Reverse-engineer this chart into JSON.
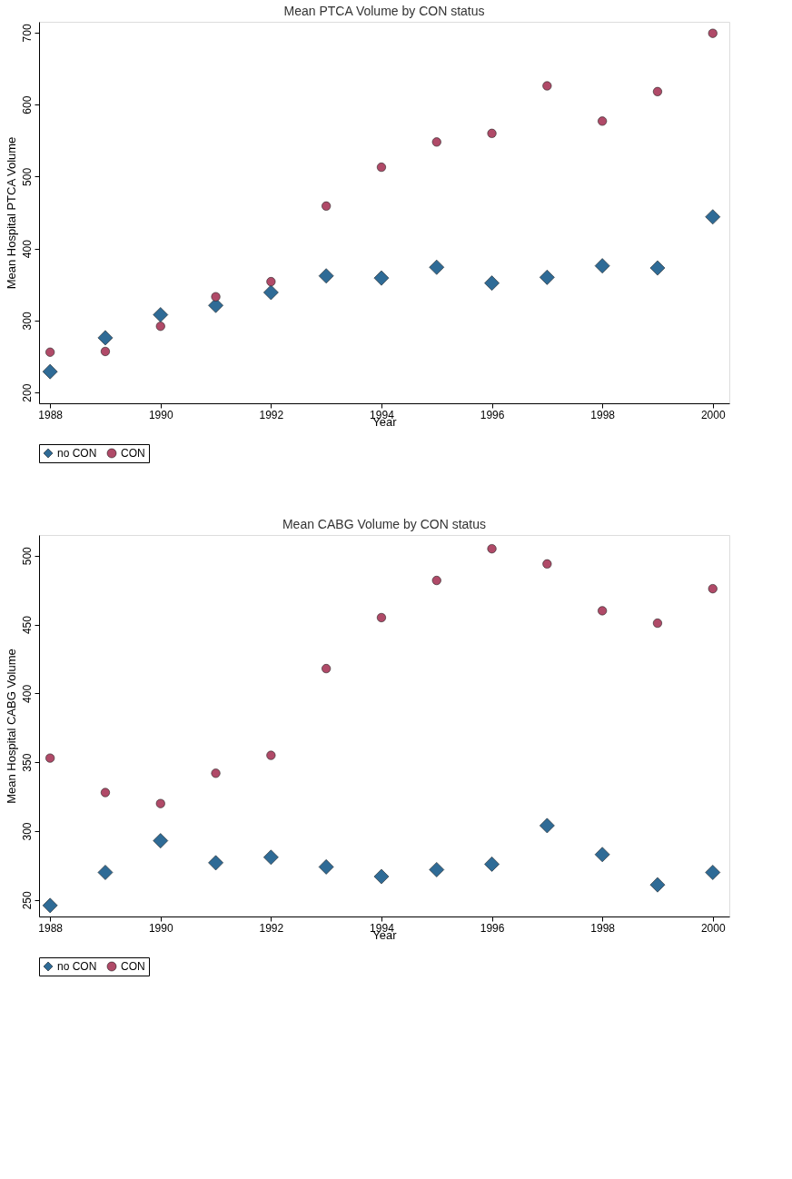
{
  "chart_data": [
    {
      "type": "scatter",
      "title": "Mean PTCA Volume by CON status",
      "xlabel": "Year",
      "ylabel": "Mean Hospital PTCA Volume",
      "x": [
        1988,
        1989,
        1990,
        1991,
        1992,
        1993,
        1994,
        1995,
        1996,
        1997,
        1998,
        1999,
        2000
      ],
      "xlim": [
        1987.8,
        2000.3
      ],
      "xticks": [
        1988,
        1990,
        1992,
        1994,
        1996,
        1998,
        2000
      ],
      "ylim": [
        185,
        715
      ],
      "yticks": [
        200,
        300,
        400,
        500,
        600,
        700
      ],
      "grid": false,
      "legend": "bottom",
      "series": [
        {
          "name": "no CON",
          "color": "#2f6b96",
          "marker": "diamond",
          "values": [
            229,
            276,
            308,
            321,
            339,
            362,
            359,
            374,
            352,
            360,
            376,
            373,
            444
          ]
        },
        {
          "name": "CON",
          "color": "#b04a68",
          "marker": "circle",
          "values": [
            256,
            257,
            292,
            333,
            354,
            459,
            513,
            548,
            560,
            626,
            577,
            618,
            699
          ]
        }
      ]
    },
    {
      "type": "scatter",
      "title": "Mean CABG Volume by CON status",
      "xlabel": "Year",
      "ylabel": "Mean Hospital CABG Volume",
      "x": [
        1988,
        1989,
        1990,
        1991,
        1992,
        1993,
        1994,
        1995,
        1996,
        1997,
        1998,
        1999,
        2000
      ],
      "xlim": [
        1987.8,
        2000.3
      ],
      "xticks": [
        1988,
        1990,
        1992,
        1994,
        1996,
        1998,
        2000
      ],
      "ylim": [
        238,
        515
      ],
      "yticks": [
        250,
        300,
        350,
        400,
        450,
        500
      ],
      "grid": false,
      "legend": "bottom",
      "series": [
        {
          "name": "no CON",
          "color": "#2f6b96",
          "marker": "diamond",
          "values": [
            246,
            270,
            293,
            277,
            281,
            274,
            267,
            272,
            276,
            304,
            283,
            261,
            270
          ]
        },
        {
          "name": "CON",
          "color": "#b04a68",
          "marker": "circle",
          "values": [
            353,
            328,
            320,
            342,
            355,
            418,
            455,
            482,
            505,
            494,
            460,
            451,
            476
          ]
        }
      ]
    }
  ]
}
